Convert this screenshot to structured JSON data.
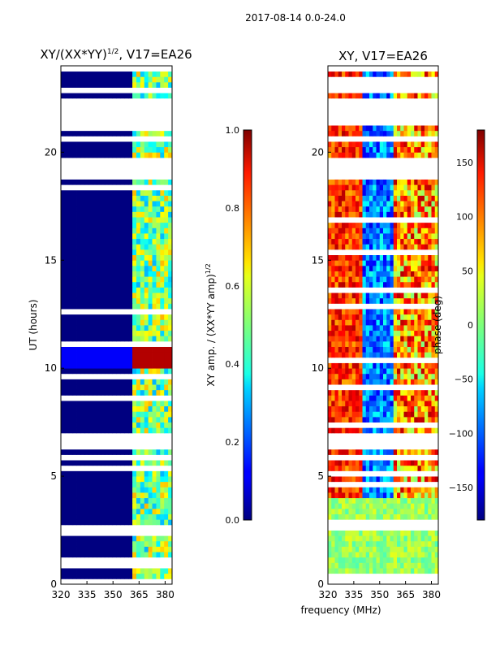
{
  "suptitle": "2017-08-14 0.0-24.0",
  "chart_data": [
    {
      "type": "heatmap",
      "title_main": "XY/(XX*YY)",
      "title_sup": "1/2",
      "title_tail": ", V17=EA26",
      "xlabel": "",
      "ylabel": "UT (hours)",
      "xlim": [
        320,
        384
      ],
      "ylim": [
        0,
        24
      ],
      "xticks": [
        "320",
        "335",
        "350",
        "365",
        "380"
      ],
      "xtick_values": [
        320,
        335,
        350,
        365,
        380
      ],
      "yticks": [
        "0",
        "5",
        "10",
        "15",
        "20"
      ],
      "ytick_values": [
        0,
        5,
        10,
        15,
        20
      ],
      "colorbar": {
        "label_main": "XY amp. / (XX*YY amp)",
        "label_sup": "1/2",
        "range": [
          0.0,
          1.0
        ],
        "ticks": [
          "0.0",
          "0.2",
          "0.4",
          "0.6",
          "0.8",
          "1.0"
        ],
        "tick_values": [
          0.0,
          0.2,
          0.4,
          0.6,
          0.8,
          1.0
        ]
      },
      "colormap": "jet",
      "features": {
        "background_level": 0.0,
        "active_band_mhz": [
          361,
          382
        ],
        "hot_band_hours": [
          10.0,
          11.0
        ],
        "hot_level": 0.95
      }
    },
    {
      "type": "heatmap",
      "title": "XY, V17=EA26",
      "xlabel": "frequency (MHz)",
      "ylabel": "",
      "xlim": [
        320,
        384
      ],
      "ylim": [
        0,
        24
      ],
      "xticks": [
        "320",
        "335",
        "350",
        "365",
        "380"
      ],
      "xtick_values": [
        320,
        335,
        350,
        365,
        380
      ],
      "yticks": [
        "0",
        "5",
        "10",
        "15",
        "20"
      ],
      "ytick_values": [
        0,
        5,
        10,
        15,
        20
      ],
      "colorbar": {
        "label": "phase (deg)",
        "range": [
          -180,
          180
        ],
        "ticks": [
          "−150",
          "−100",
          "−50",
          "0",
          "50",
          "100",
          "150"
        ],
        "tick_values": [
          -150,
          -100,
          -50,
          0,
          50,
          100,
          150
        ]
      },
      "colormap": "jet"
    }
  ],
  "flagged_hours": [
    [
      5.65,
      5.95
    ],
    [
      6.05,
      6.8
    ],
    [
      18.55,
      19.75
    ],
    [
      20.35,
      20.55
    ],
    [
      21.2,
      22.3
    ],
    [
      22.7,
      22.85
    ],
    [
      23.6,
      24.0
    ]
  ]
}
